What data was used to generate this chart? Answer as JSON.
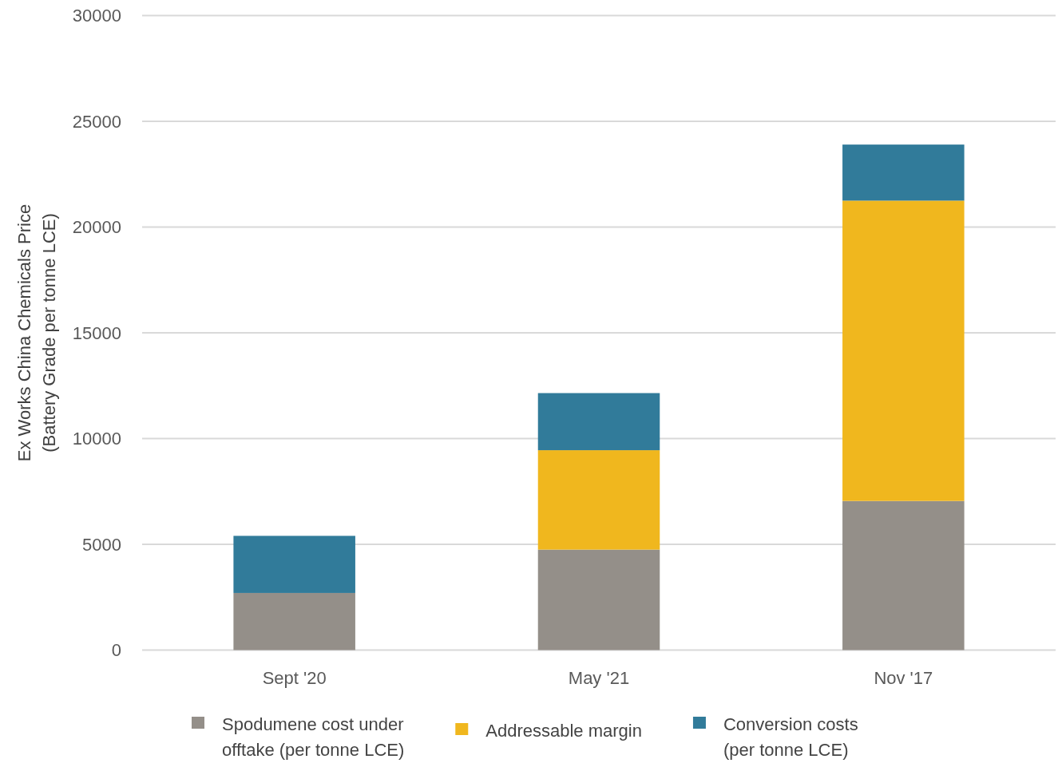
{
  "chart_data": {
    "type": "bar",
    "ylabel": "Ex Works China Chemicals Price (Battery Grade per tonne LCE)",
    "categories": [
      "Sept '20",
      "May '21",
      "Nov '17"
    ],
    "series": [
      {
        "name": "Spodumene cost under offtake (per tonne LCE)",
        "color": "#948f89",
        "values": [
          2700,
          4750,
          7050
        ]
      },
      {
        "name": "Addressable margin",
        "color": "#f0b71e",
        "values": [
          null,
          4700,
          14200
        ]
      },
      {
        "name": "Conversion costs (per tonne LCE)",
        "color": "#317b9a",
        "values": [
          2700,
          2700,
          2650
        ]
      }
    ],
    "stacked": true,
    "ylim": [
      0,
      30000
    ],
    "yticks": [
      0,
      5000,
      10000,
      15000,
      20000,
      25000,
      30000
    ],
    "grid": "y",
    "legend": "bottom"
  }
}
